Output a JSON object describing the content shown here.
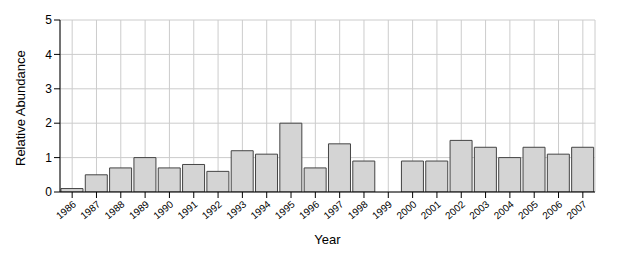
{
  "chart_data": {
    "type": "bar",
    "x_label": "Year",
    "y_label": "Relative Abundance",
    "categories": [
      "1986",
      "1987",
      "1988",
      "1989",
      "1990",
      "1991",
      "1992",
      "1993",
      "1994",
      "1995",
      "1996",
      "1997",
      "1998",
      "1999",
      "2000",
      "2001",
      "2002",
      "2003",
      "2004",
      "2005",
      "2006",
      "2007"
    ],
    "values": [
      0.1,
      0.5,
      0.7,
      1.0,
      0.7,
      0.8,
      0.6,
      1.2,
      1.1,
      2.0,
      0.7,
      1.4,
      0.9,
      null,
      0.9,
      0.9,
      1.5,
      1.3,
      1.0,
      1.3,
      1.1,
      1.3
    ],
    "color": "#d4d4d4",
    "ylim": [
      0,
      5
    ],
    "yticks": [
      0,
      1,
      2,
      3,
      4,
      5
    ],
    "grid": true
  }
}
